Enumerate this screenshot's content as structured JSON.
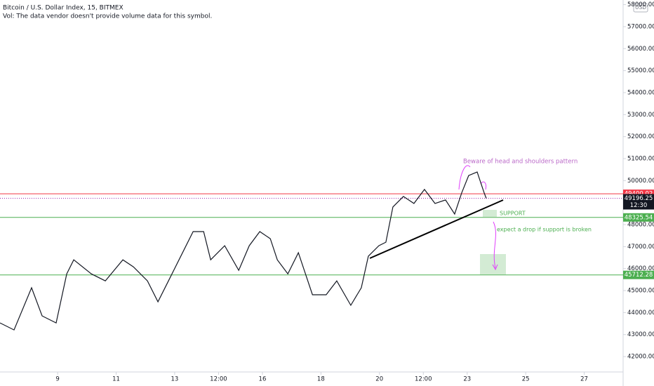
{
  "chart_data": {
    "type": "line",
    "title": "Bitcoin / U.S. Dollar Index, 15, BITMEX",
    "subtitle": "Vol: The data vendor doesn't provide volume data for this symbol.",
    "currency": "USD",
    "series": [
      {
        "name": "BTCUSD",
        "color": "#131722",
        "x": [
          7.03,
          7.51,
          8.11,
          8.47,
          8.95,
          9.31,
          9.55,
          10.15,
          10.63,
          11.23,
          11.59,
          12.07,
          12.43,
          12.79,
          13.15,
          13.63,
          13.99,
          14.23,
          14.71,
          15.19,
          15.55,
          15.91,
          16.27,
          16.51,
          16.87,
          17.23,
          17.71,
          18.18,
          18.54,
          19.02,
          19.38,
          19.62,
          19.98,
          20.22,
          20.46,
          20.82,
          21.18,
          21.54,
          21.9,
          22.26,
          22.57,
          22.81,
          23.05,
          23.34,
          23.58,
          23.65
        ],
        "values": [
          43530,
          43210,
          45130,
          43850,
          43530,
          45760,
          46400,
          45760,
          45440,
          46400,
          46080,
          45440,
          44490,
          45440,
          46400,
          47680,
          47680,
          46400,
          47040,
          45920,
          47040,
          47680,
          47360,
          46400,
          45760,
          46720,
          44810,
          44810,
          45440,
          44330,
          45130,
          46560,
          47040,
          47200,
          48800,
          49280,
          48960,
          49600,
          48960,
          49120,
          48480,
          49440,
          50230,
          50390,
          49440,
          49196
        ]
      }
    ],
    "levels": [
      {
        "value": 49400.02,
        "color": "#f23645"
      },
      {
        "value": 48325.54,
        "color": "#4caf50"
      },
      {
        "value": 45712.28,
        "color": "#4caf50"
      }
    ],
    "last_price": {
      "value": 49196.25,
      "countdown": "12:30",
      "color": "#9c27b0"
    },
    "annotations": [
      "Beware of head and shoulders pattern",
      "SUPPORT",
      "expect a drop if support is broken"
    ],
    "xlim": [
      7.03,
      28.33
    ],
    "ylim": [
      41300,
      58210
    ],
    "xticks": [
      {
        "value": 9,
        "label": "9"
      },
      {
        "value": 11,
        "label": "11"
      },
      {
        "value": 13,
        "label": "13"
      },
      {
        "value": 14.5,
        "label": "12:00"
      },
      {
        "value": 16,
        "label": "16"
      },
      {
        "value": 18,
        "label": "18"
      },
      {
        "value": 20,
        "label": "20"
      },
      {
        "value": 21.5,
        "label": "12:00"
      },
      {
        "value": 23,
        "label": "23"
      },
      {
        "value": 25,
        "label": "25"
      },
      {
        "value": 27,
        "label": "27"
      }
    ],
    "yticks": [
      {
        "value": 42000,
        "label": "42000.00"
      },
      {
        "value": 43000,
        "label": "43000.00"
      },
      {
        "value": 44000,
        "label": "44000.00"
      },
      {
        "value": 45000,
        "label": "45000.00"
      },
      {
        "value": 46000,
        "label": "46000.00"
      },
      {
        "value": 47000,
        "label": "47000.00"
      },
      {
        "value": 48000,
        "label": "48000.00"
      },
      {
        "value": 49000,
        "label": "49000.00"
      },
      {
        "value": 50000,
        "label": "50000.00"
      },
      {
        "value": 51000,
        "label": "51000.00"
      },
      {
        "value": 52000,
        "label": "52000.00"
      },
      {
        "value": 53000,
        "label": "53000.00"
      },
      {
        "value": 54000,
        "label": "54000.00"
      },
      {
        "value": 55000,
        "label": "55000.00"
      },
      {
        "value": 56000,
        "label": "56000.00"
      },
      {
        "value": 57000,
        "label": "57000.00"
      },
      {
        "value": 58000,
        "label": "58000.00"
      }
    ]
  }
}
